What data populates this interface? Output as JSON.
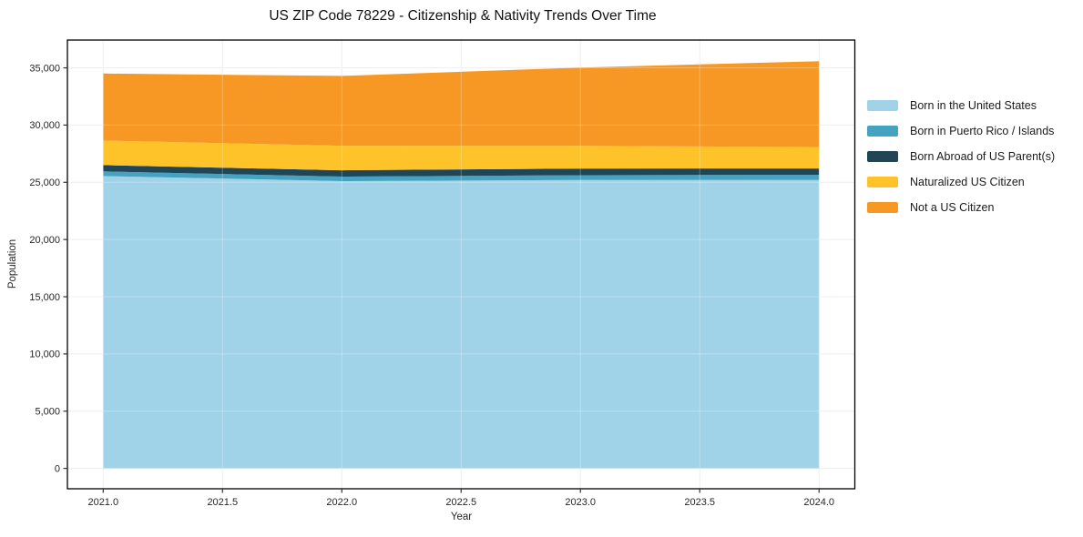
{
  "chart_data": {
    "type": "area",
    "stacked": true,
    "title": "US ZIP Code 78229 - Citizenship & Nativity Trends Over Time",
    "xlabel": "Year",
    "ylabel": "Population",
    "x": [
      2021,
      2022,
      2023,
      2024
    ],
    "series": [
      {
        "name": "Born in the United States",
        "color": "#a0d3e8",
        "values": [
          25550,
          25100,
          25200,
          25200
        ]
      },
      {
        "name": "Born in Puerto Rico / Islands",
        "color": "#44a3c1",
        "values": [
          400,
          400,
          420,
          450
        ]
      },
      {
        "name": "Born Abroad of US Parent(s)",
        "color": "#1f4557",
        "values": [
          550,
          550,
          580,
          560
        ]
      },
      {
        "name": "Naturalized US Citizen",
        "color": "#fdc328",
        "values": [
          2150,
          2150,
          1980,
          1870
        ]
      },
      {
        "name": "Not a US Citizen",
        "color": "#f79824",
        "values": [
          5850,
          6100,
          6850,
          7500
        ]
      }
    ],
    "totals": [
      34500,
      34300,
      35030,
      35580
    ],
    "xlim": [
      2020.85,
      2024.15
    ],
    "ylim": [
      -1780,
      37430
    ],
    "xticks": {
      "values": [
        2021.0,
        2021.5,
        2022.0,
        2022.5,
        2023.0,
        2023.5,
        2024.0
      ],
      "labels": [
        "2021.0",
        "2021.5",
        "2022.0",
        "2022.5",
        "2023.0",
        "2023.5",
        "2024.0"
      ]
    },
    "yticks": {
      "values": [
        0,
        5000,
        10000,
        15000,
        20000,
        25000,
        30000,
        35000
      ],
      "labels": [
        "0",
        "5,000",
        "10,000",
        "15,000",
        "20,000",
        "25,000",
        "30,000",
        "35,000"
      ]
    },
    "grid": true,
    "grid_color": "#e9e9e9",
    "frame_color": "#000000",
    "tick_color": "#333333",
    "legend_position": "right-outside-top"
  }
}
